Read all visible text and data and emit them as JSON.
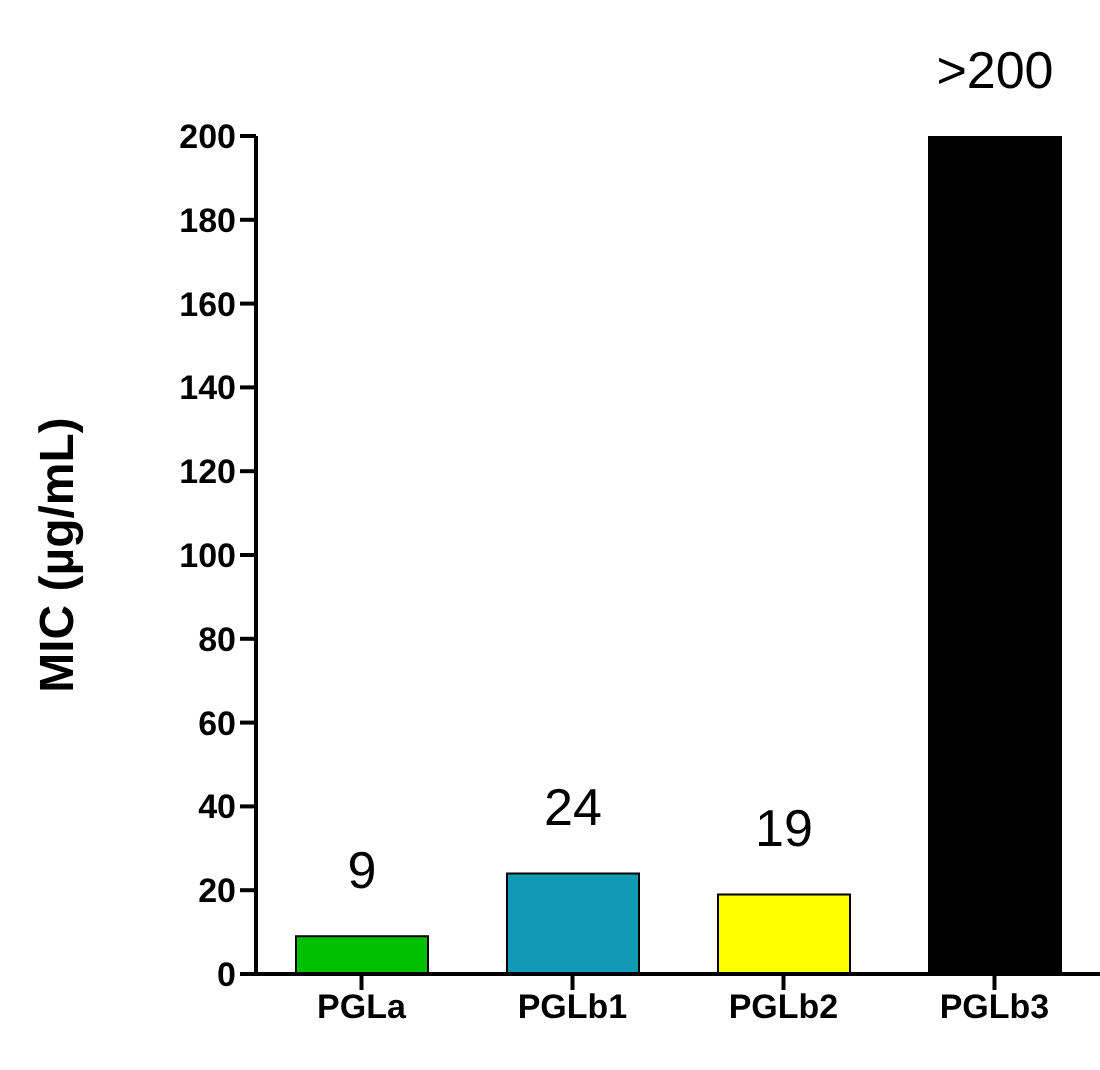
{
  "chart_data": {
    "type": "bar",
    "ylabel": "MIC (µg/mL)",
    "categories": [
      "PGLa",
      "PGLb1",
      "PGLb2",
      "PGLb3"
    ],
    "values": [
      9,
      24,
      19,
      200
    ],
    "colors": [
      "#00c000",
      "#1199b5",
      "#ffff00",
      "#000000"
    ],
    "value_labels": [
      "9",
      "24",
      "19",
      ">200"
    ],
    "ylim": [
      0,
      200
    ],
    "yticks": [
      0,
      20,
      40,
      60,
      80,
      100,
      120,
      140,
      160,
      180,
      200
    ],
    "grid": false,
    "legend": false
  }
}
